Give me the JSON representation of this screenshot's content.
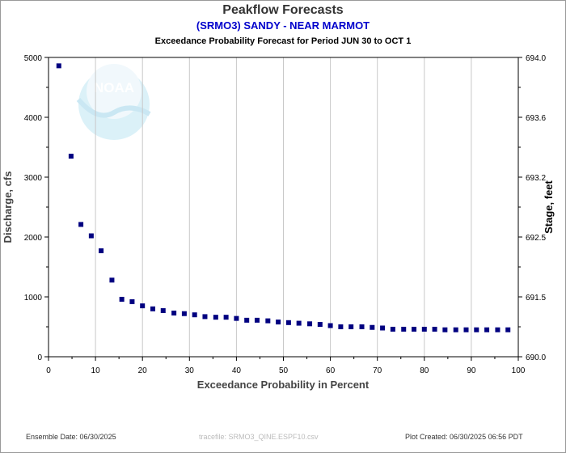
{
  "colors": {
    "marker": "#000080",
    "grid": "#c8c8c8",
    "subtitle": "#0000cc",
    "noaa_logo": "#bfe6f3"
  },
  "logo": {
    "text": "NOAA",
    "icon": "noaa-logo"
  },
  "footer": {
    "ensemble_date": "Ensemble Date: 06/30/2025",
    "tracefile": "tracefile: SRMO3_QINE.ESPF10.csv",
    "plot_created": "Plot Created: 06/30/2025 06:56 PDT"
  },
  "chart_data": {
    "type": "scatter",
    "title": "Peakflow Forecasts",
    "subtitle": "(SRMO3) SANDY - NEAR MARMOT",
    "period": "Exceedance Probability Forecast for Period JUN 30 to OCT 1",
    "xlabel": "Exceedance Probability in Percent",
    "ylabel": "Discharge, cfs",
    "y2label": "Stage, feet",
    "xlim": [
      0,
      100
    ],
    "ylim": [
      0,
      5000
    ],
    "xticks": [
      "0",
      "10",
      "20",
      "30",
      "40",
      "50",
      "60",
      "70",
      "80",
      "90",
      "100"
    ],
    "yticks": [
      "0",
      "1000",
      "2000",
      "3000",
      "4000",
      "5000"
    ],
    "y2ticks": [
      "690.0",
      "691.5",
      "692.5",
      "693.2",
      "693.6",
      "694.0"
    ],
    "y2tick_values": [
      0,
      1000,
      2000,
      3000,
      4000,
      5000
    ],
    "grid": true,
    "series": [
      {
        "x": [
          2.2,
          4.8,
          6.9,
          9.1,
          11.2,
          13.5,
          15.6,
          17.8,
          20.0,
          22.2,
          24.4,
          26.7,
          28.9,
          31.1,
          33.3,
          35.6,
          37.8,
          40.0,
          42.2,
          44.4,
          46.7,
          48.9,
          51.1,
          53.3,
          55.6,
          57.8,
          60.0,
          62.2,
          64.4,
          66.7,
          68.9,
          71.1,
          73.3,
          75.6,
          77.8,
          80.0,
          82.2,
          84.4,
          86.7,
          88.9,
          91.1,
          93.3,
          95.6,
          97.8
        ],
        "y": [
          4860,
          3350,
          2210,
          2020,
          1770,
          1280,
          960,
          920,
          850,
          800,
          770,
          730,
          720,
          700,
          670,
          660,
          660,
          640,
          610,
          610,
          600,
          580,
          570,
          560,
          550,
          540,
          520,
          500,
          500,
          500,
          490,
          480,
          460,
          460,
          460,
          460,
          460,
          450,
          450,
          450,
          450,
          450,
          450,
          450
        ]
      }
    ]
  }
}
